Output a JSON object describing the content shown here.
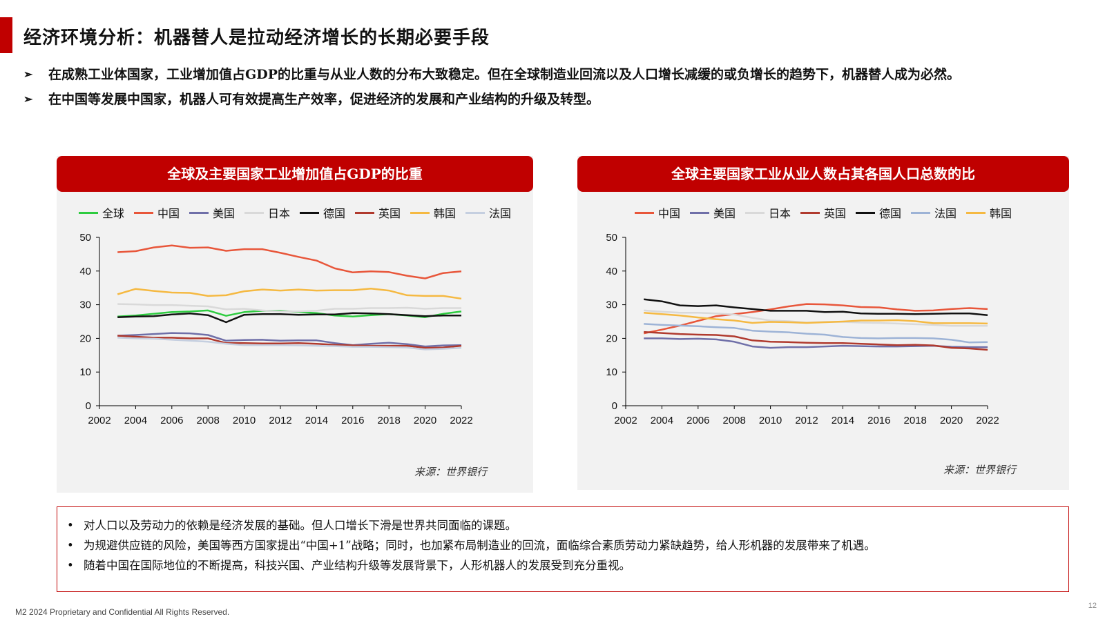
{
  "header": {
    "title": "经济环境分析：机器替人是拉动经济增长的长期必要手段"
  },
  "bullets": [
    "在成熟工业体国家，工业增加值占GDP的比重与从业人数的分布大致稳定。但在全球制造业回流以及人口增长减缓的或负增长的趋势下，机器替人成为必然。",
    "在中国等发展中国家，机器人可有效提高生产效率，促进经济的发展和产业结构的升级及转型。"
  ],
  "bullet_marker": "➢",
  "chart_data": [
    {
      "type": "line",
      "title": "全球及主要国家工业增加值占GDP的比重",
      "source": "来源：世界银行",
      "xlim": [
        2002,
        2022
      ],
      "ylim": [
        0,
        50
      ],
      "xticks": [
        "2002",
        "2004",
        "2006",
        "2008",
        "2010",
        "2012",
        "2014",
        "2016",
        "2018",
        "2020",
        "2022"
      ],
      "yticks": [
        "0",
        "10",
        "20",
        "30",
        "40",
        "50"
      ],
      "x": [
        2003,
        2004,
        2005,
        2006,
        2007,
        2008,
        2009,
        2010,
        2011,
        2012,
        2013,
        2014,
        2015,
        2016,
        2017,
        2018,
        2019,
        2020,
        2021,
        2022
      ],
      "legend_position": "top",
      "series": [
        {
          "name": "全球",
          "color": "#2ecc40",
          "values": [
            26.5,
            26.8,
            27.3,
            27.8,
            28.0,
            28.3,
            26.7,
            27.8,
            28.2,
            28.2,
            27.8,
            27.5,
            26.8,
            26.5,
            26.9,
            27.2,
            26.8,
            26.3,
            27.3,
            28.0
          ]
        },
        {
          "name": "中国",
          "color": "#e8563a",
          "values": [
            45.6,
            45.9,
            47.0,
            47.6,
            46.9,
            47.0,
            46.0,
            46.5,
            46.5,
            45.4,
            44.2,
            43.1,
            40.8,
            39.6,
            39.9,
            39.7,
            38.6,
            37.8,
            39.4,
            39.9
          ]
        },
        {
          "name": "美国",
          "color": "#6f6fa8",
          "values": [
            20.8,
            21.0,
            21.3,
            21.6,
            21.5,
            21.0,
            19.3,
            19.5,
            19.6,
            19.3,
            19.4,
            19.4,
            18.6,
            18.0,
            18.4,
            18.7,
            18.3,
            17.6,
            17.9,
            18.0
          ]
        },
        {
          "name": "日本",
          "color": "#d9d9d9",
          "values": [
            30.2,
            30.1,
            29.9,
            29.9,
            29.7,
            29.5,
            28.6,
            28.8,
            28.3,
            28.0,
            28.0,
            28.2,
            28.8,
            28.8,
            29.0,
            29.0,
            29.1,
            28.8,
            29.0,
            29.0
          ]
        },
        {
          "name": "德国",
          "color": "#111111",
          "values": [
            26.3,
            26.5,
            26.6,
            27.1,
            27.4,
            26.9,
            24.8,
            27.0,
            27.2,
            27.2,
            27.0,
            27.1,
            27.1,
            27.5,
            27.4,
            27.2,
            26.9,
            26.6,
            26.8,
            26.8
          ]
        },
        {
          "name": "英国",
          "color": "#b03a2e",
          "values": [
            20.8,
            20.5,
            20.2,
            20.2,
            20.0,
            20.0,
            18.6,
            18.6,
            18.5,
            18.5,
            18.6,
            18.4,
            18.1,
            17.9,
            17.8,
            17.8,
            17.8,
            17.2,
            17.3,
            17.8
          ]
        },
        {
          "name": "韩国",
          "color": "#f5b942",
          "values": [
            33.1,
            34.7,
            34.1,
            33.6,
            33.5,
            32.6,
            32.8,
            34.0,
            34.5,
            34.2,
            34.5,
            34.2,
            34.3,
            34.3,
            34.8,
            34.2,
            32.8,
            32.6,
            32.6,
            31.8
          ]
        },
        {
          "name": "法国",
          "color": "#c5cfe0",
          "values": [
            20.2,
            20.0,
            19.9,
            19.6,
            19.3,
            19.0,
            18.4,
            18.0,
            18.0,
            18.0,
            17.9,
            17.8,
            17.7,
            17.5,
            17.5,
            17.4,
            17.3,
            16.7,
            16.9,
            17.2
          ]
        }
      ]
    },
    {
      "type": "line",
      "title": "全球主要国家工业从业人数占其各国人口总数的比",
      "source": "来源：世界银行",
      "xlim": [
        2002,
        2022
      ],
      "ylim": [
        0,
        50
      ],
      "xticks": [
        "2002",
        "2004",
        "2006",
        "2008",
        "2010",
        "2012",
        "2014",
        "2016",
        "2018",
        "2020",
        "2022"
      ],
      "yticks": [
        "0",
        "10",
        "20",
        "30",
        "40",
        "50"
      ],
      "x": [
        2003,
        2004,
        2005,
        2006,
        2007,
        2008,
        2009,
        2010,
        2011,
        2012,
        2013,
        2014,
        2015,
        2016,
        2017,
        2018,
        2019,
        2020,
        2021,
        2022
      ],
      "legend_position": "top",
      "series": [
        {
          "name": "中国",
          "color": "#e8563a",
          "values": [
            21.5,
            22.6,
            23.8,
            25.2,
            26.6,
            27.2,
            27.8,
            28.6,
            29.5,
            30.2,
            30.1,
            29.8,
            29.3,
            29.2,
            28.6,
            28.2,
            28.3,
            28.7,
            29.0,
            28.7
          ]
        },
        {
          "name": "美国",
          "color": "#6f6fa8",
          "values": [
            20.0,
            20.0,
            19.8,
            19.9,
            19.7,
            19.0,
            17.6,
            17.2,
            17.4,
            17.4,
            17.6,
            17.8,
            17.7,
            17.6,
            17.6,
            17.7,
            17.8,
            17.5,
            17.4,
            17.4
          ]
        },
        {
          "name": "日本",
          "color": "#d9d9d9",
          "values": [
            28.3,
            27.9,
            27.6,
            27.6,
            27.4,
            27.1,
            26.1,
            25.3,
            25.1,
            24.7,
            24.9,
            24.9,
            24.7,
            24.6,
            24.4,
            24.2,
            24.0,
            23.7,
            23.7,
            23.7
          ]
        },
        {
          "name": "英国",
          "color": "#b03a2e",
          "values": [
            21.9,
            21.6,
            21.3,
            21.1,
            21.0,
            20.6,
            19.4,
            19.0,
            18.9,
            18.7,
            18.6,
            18.6,
            18.4,
            18.2,
            18.0,
            18.1,
            17.9,
            17.2,
            17.0,
            16.6
          ]
        },
        {
          "name": "德国",
          "color": "#111111",
          "values": [
            31.6,
            31.0,
            29.8,
            29.6,
            29.8,
            29.2,
            28.7,
            28.2,
            28.2,
            28.2,
            27.8,
            27.9,
            27.4,
            27.3,
            27.3,
            27.2,
            27.3,
            27.4,
            27.4,
            26.9
          ]
        },
        {
          "name": "法国",
          "color": "#9db3d6",
          "values": [
            24.3,
            24.0,
            23.8,
            23.6,
            23.3,
            23.1,
            22.3,
            22.0,
            21.8,
            21.4,
            21.1,
            20.4,
            20.1,
            20.0,
            20.1,
            20.1,
            20.0,
            19.6,
            18.8,
            18.9
          ]
        },
        {
          "name": "韩国",
          "color": "#f5b942",
          "values": [
            27.6,
            27.2,
            26.8,
            26.2,
            25.7,
            25.3,
            24.6,
            24.9,
            24.8,
            24.6,
            24.8,
            25.0,
            25.3,
            25.3,
            25.4,
            25.1,
            24.5,
            24.5,
            24.5,
            24.4
          ]
        }
      ]
    }
  ],
  "notes": [
    "对人口以及劳动力的依赖是经济发展的基础。但人口增长下滑是世界共同面临的课题。",
    "为规避供应链的风险，美国等西方国家提出“中国+1”战略；同时，也加紧布局制造业的回流，面临综合素质劳动力紧缺趋势，给人形机器的发展带来了机遇。",
    "随着中国在国际地位的不断提高，科技兴国、产业结构升级等发展背景下，人形机器人的发展受到充分重视。"
  ],
  "note_marker": "•",
  "footer": {
    "text": "M2 2024 Proprietary and Confidential All Rights Reserved.",
    "page_number": "12"
  }
}
